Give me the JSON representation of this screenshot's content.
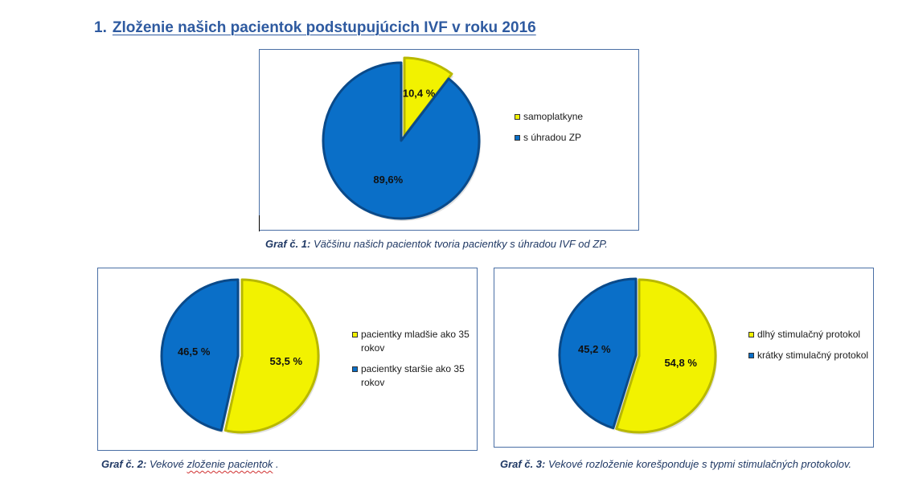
{
  "heading": {
    "number": "1.",
    "text": "Zloženie našich pacientok podstupujúcich IVF v roku 2016"
  },
  "colors": {
    "yellow": "#f2f200",
    "yellow_edge": "#b8b800",
    "blue": "#0a6fc8",
    "blue_edge": "#0a4a8a",
    "frame": "#4a6fa5"
  },
  "chart_data": [
    {
      "type": "pie",
      "title": "",
      "slices": [
        {
          "label": "samoplatkyne",
          "value": 10.4,
          "data_label": "10,4 %",
          "color": "#f2f200"
        },
        {
          "label": "s úhradou ZP",
          "value": 89.6,
          "data_label": "89,6%",
          "color": "#0a6fc8"
        }
      ],
      "legend_position": "right",
      "caption": {
        "label": "Graf č. 1:",
        "text": " Väčšinu našich pacientok tvoria pacientky s úhradou IVF od ZP."
      }
    },
    {
      "type": "pie",
      "title": "",
      "slices": [
        {
          "label": "pacientky mladšie ako 35 rokov",
          "value": 53.5,
          "data_label": "53,5 %",
          "color": "#f2f200"
        },
        {
          "label": "pacientky staršie ako 35 rokov",
          "value": 46.5,
          "data_label": "46,5 %",
          "color": "#0a6fc8"
        }
      ],
      "legend_position": "right",
      "caption": {
        "label": "Graf č. 2:",
        "text_plain": " Vekové ",
        "text_wavy": "zloženie pacientok",
        "text_end": " ."
      }
    },
    {
      "type": "pie",
      "title": "",
      "slices": [
        {
          "label": "dlhý stimulačný protokol",
          "value": 54.8,
          "data_label": "54,8 %",
          "color": "#f2f200"
        },
        {
          "label": "krátky stimulačný protokol",
          "value": 45.2,
          "data_label": "45,2 %",
          "color": "#0a6fc8"
        }
      ],
      "legend_position": "right",
      "caption": {
        "label": "Graf č. 3:",
        "text": " Vekové rozloženie korešponduje s typmi stimulačných protokolov."
      }
    }
  ]
}
